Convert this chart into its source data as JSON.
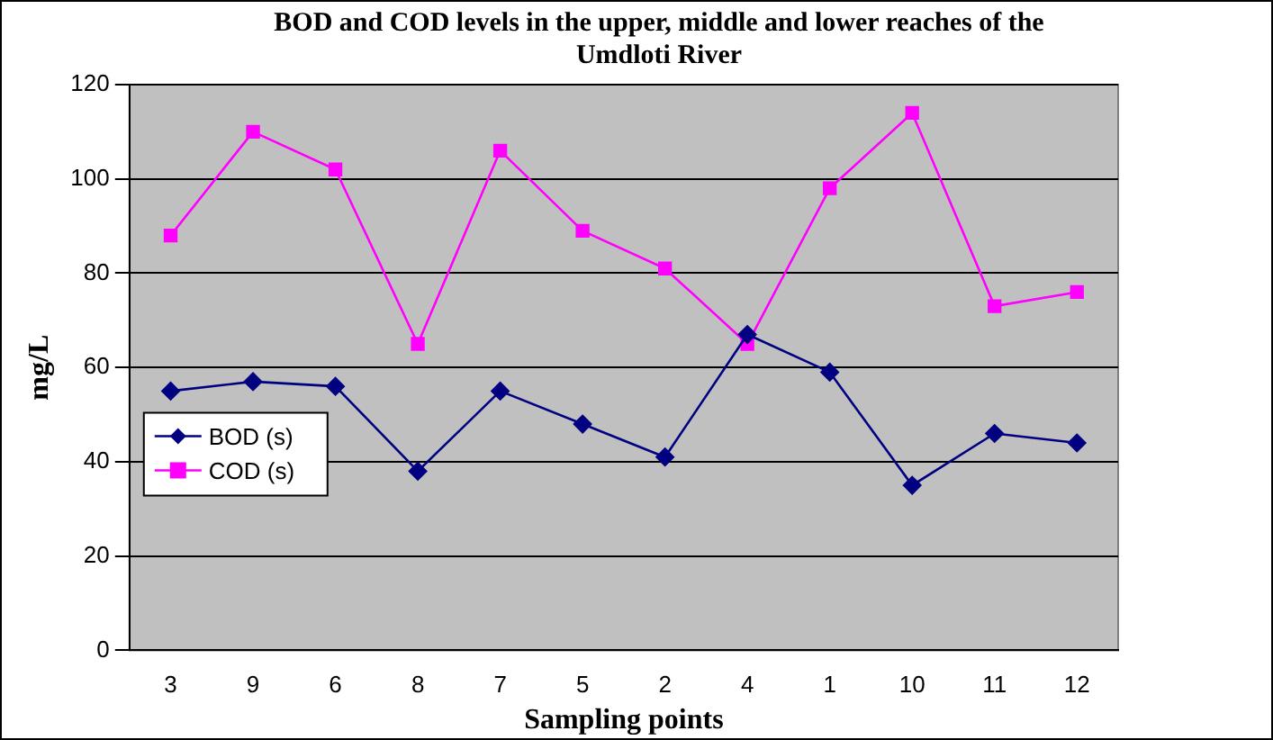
{
  "chart_data": {
    "type": "line",
    "title": "BOD and COD levels in the upper, middle and lower reaches of the Umdloti River",
    "xlabel": "Sampling points",
    "ylabel": "mg/L",
    "categories": [
      "3",
      "9",
      "6",
      "8",
      "7",
      "5",
      "2",
      "4",
      "1",
      "10",
      "11",
      "12"
    ],
    "series": [
      {
        "name": "BOD (s)",
        "color": "#000080",
        "marker": "diamond",
        "values": [
          55,
          57,
          56,
          38,
          55,
          48,
          41,
          67,
          59,
          35,
          46,
          44
        ]
      },
      {
        "name": "COD (s)",
        "color": "#ff00ff",
        "marker": "square",
        "values": [
          88,
          110,
          102,
          65,
          106,
          89,
          81,
          65,
          98,
          114,
          73,
          76
        ]
      }
    ],
    "ylim": [
      0,
      120
    ],
    "yticks": [
      0,
      20,
      40,
      60,
      80,
      100,
      120
    ],
    "grid": "y",
    "legend": "left"
  }
}
